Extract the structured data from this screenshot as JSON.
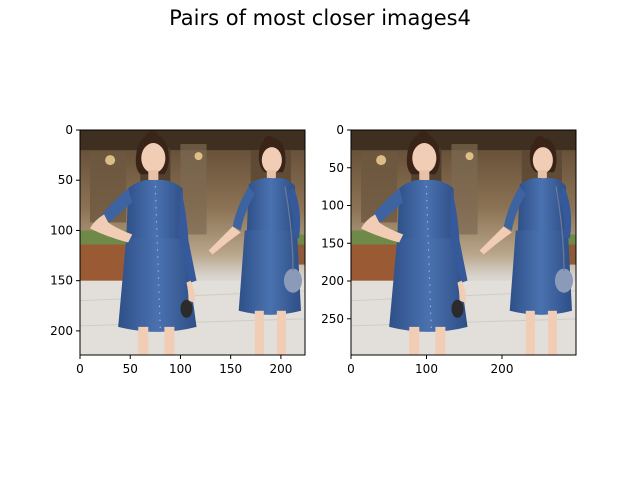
{
  "title": "Pairs of most closer images4",
  "chart_data": [
    {
      "type": "image",
      "title": "",
      "xlabel": "",
      "ylabel": "",
      "width": 224,
      "height": 224,
      "xlim": [
        0,
        224
      ],
      "ylim": [
        224,
        0
      ],
      "xticks": [
        0,
        50,
        100,
        150,
        200
      ],
      "yticks": [
        0,
        50,
        100,
        150,
        200
      ]
    },
    {
      "type": "image",
      "title": "",
      "xlabel": "",
      "ylabel": "",
      "width": 298,
      "height": 298,
      "xlim": [
        0,
        298
      ],
      "ylim": [
        298,
        0
      ],
      "xticks": [
        0,
        100,
        200
      ],
      "yticks": [
        0,
        50,
        100,
        150,
        200,
        250
      ]
    }
  ],
  "image_content": {
    "colors": {
      "sky": "#c9b79a",
      "shopfront_dark": "#4a3b2b",
      "shopfront_mid": "#8a7358",
      "window_glow": "#e7c58a",
      "street": "#dedbd6",
      "denim": "#3d63a0",
      "denim_dark": "#2b4b80",
      "skin": "#f0cdb4",
      "hair": "#3a2418",
      "planter": "#9a5a34",
      "greenery": "#6f8a48"
    }
  }
}
